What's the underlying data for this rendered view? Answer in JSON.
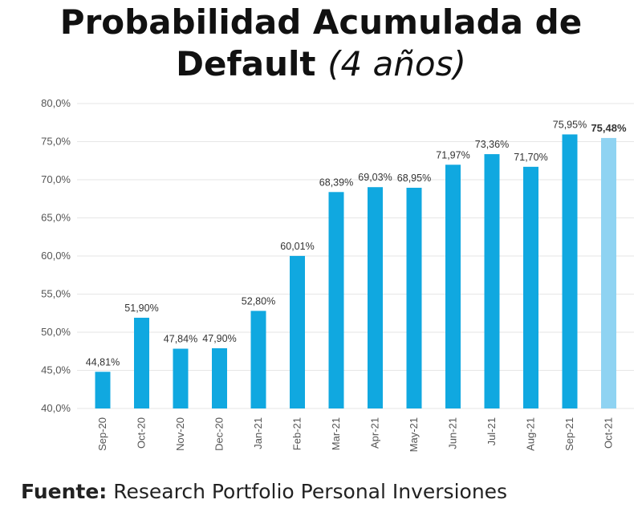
{
  "title": {
    "line1": "Probabilidad Acumulada de",
    "line2_main": "Default",
    "line2_sub": "(4 años)"
  },
  "source": {
    "label": "Fuente:",
    "text": "Research Portfolio Personal Inversiones"
  },
  "colors": {
    "bar": "#10a8e0",
    "bar_highlight": "#8fd3f2",
    "grid": "#e6e6e6",
    "tick_text": "#555555",
    "label_text": "#333333"
  },
  "chart_data": {
    "type": "bar",
    "title": "Probabilidad Acumulada de Default (4 años)",
    "xlabel": "",
    "ylabel": "",
    "ylim": [
      40,
      80
    ],
    "yticks": [
      40,
      45,
      50,
      55,
      60,
      65,
      70,
      75,
      80
    ],
    "ytick_labels": [
      "40,0%",
      "45,0%",
      "50,0%",
      "55,0%",
      "60,0%",
      "65,0%",
      "70,0%",
      "75,0%",
      "80,0%"
    ],
    "grid": true,
    "categories": [
      "Sep-20",
      "Oct-20",
      "Nov-20",
      "Dec-20",
      "Jan-21",
      "Feb-21",
      "Mar-21",
      "Apr-21",
      "May-21",
      "Jun-21",
      "Jul-21",
      "Aug-21",
      "Sep-21",
      "Oct-21"
    ],
    "values": [
      44.81,
      51.9,
      47.84,
      47.9,
      52.8,
      60.01,
      68.39,
      69.03,
      68.95,
      71.97,
      73.36,
      71.7,
      75.95,
      75.48
    ],
    "data_labels": [
      "44,81%",
      "51,90%",
      "47,84%",
      "47,90%",
      "52,80%",
      "60,01%",
      "68,39%",
      "69,03%",
      "68,95%",
      "71,97%",
      "73,36%",
      "71,70%",
      "75,95%",
      "75,48%"
    ],
    "highlight_index": 13
  }
}
